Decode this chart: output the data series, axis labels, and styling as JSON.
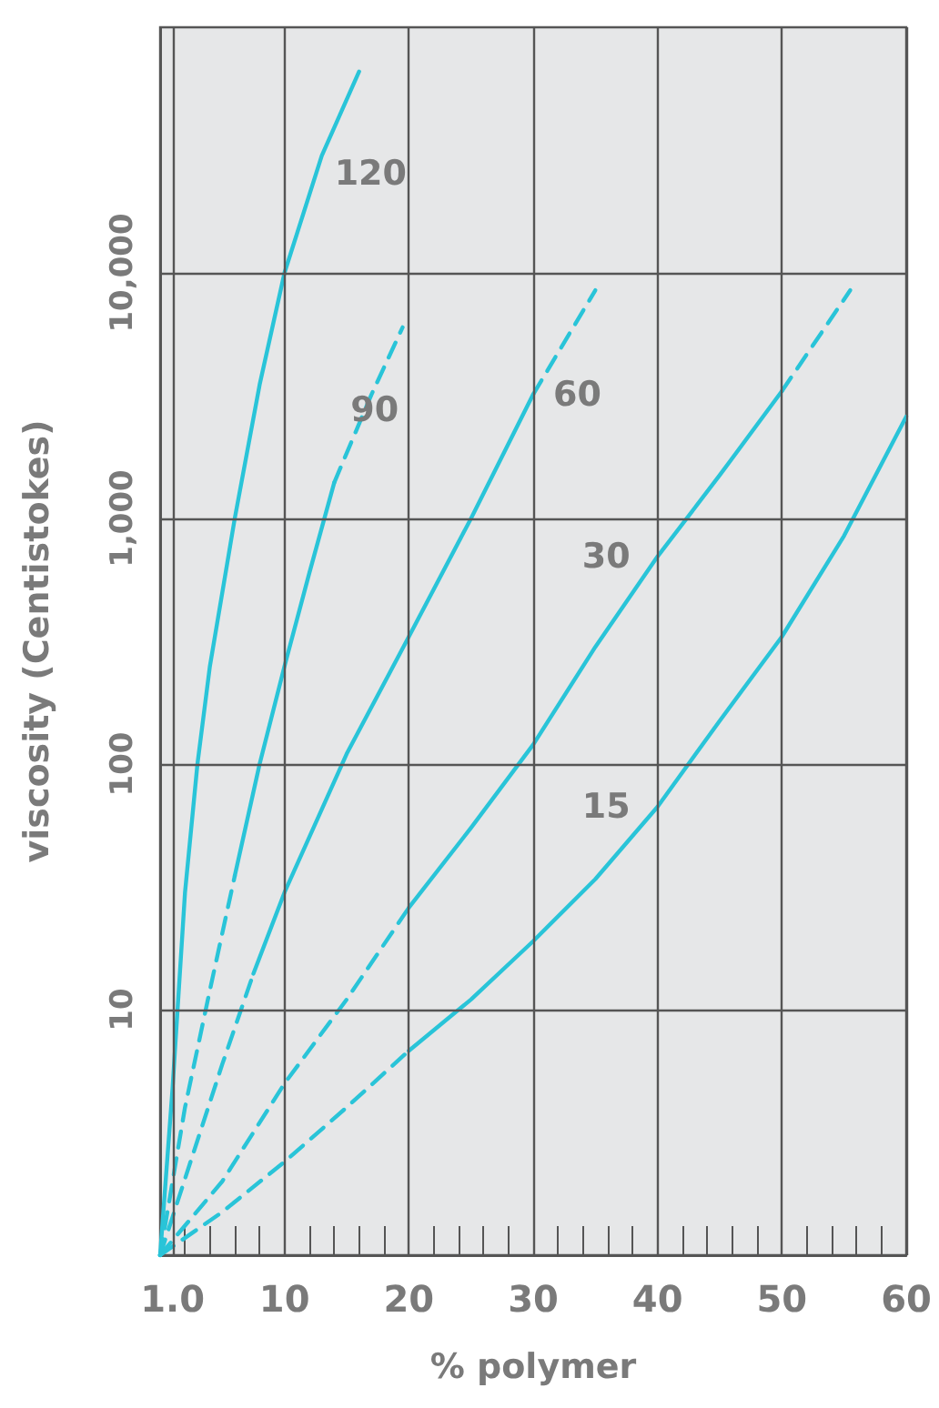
{
  "chart_data": {
    "type": "line",
    "xlabel": "% polymer",
    "ylabel": "viscosity (Centistokes)",
    "xlim": [
      0,
      60
    ],
    "xticks": [
      {
        "value": 1,
        "label": "1.0"
      },
      {
        "value": 2,
        "label": null
      },
      {
        "value": 4,
        "label": null
      },
      {
        "value": 6,
        "label": null
      },
      {
        "value": 8,
        "label": null
      },
      10,
      {
        "value": 12,
        "label": null
      },
      {
        "value": 14,
        "label": null
      },
      {
        "value": 16,
        "label": null
      },
      {
        "value": 18,
        "label": null
      },
      20,
      {
        "value": 22,
        "label": null
      },
      {
        "value": 24,
        "label": null
      },
      {
        "value": 26,
        "label": null
      },
      {
        "value": 28,
        "label": null
      },
      30,
      {
        "value": 32,
        "label": null
      },
      {
        "value": 34,
        "label": null
      },
      {
        "value": 36,
        "label": null
      },
      {
        "value": 38,
        "label": null
      },
      40,
      {
        "value": 42,
        "label": null
      },
      {
        "value": 44,
        "label": null
      },
      {
        "value": 46,
        "label": null
      },
      {
        "value": 48,
        "label": null
      },
      50,
      {
        "value": 52,
        "label": null
      },
      {
        "value": 54,
        "label": null
      },
      {
        "value": 56,
        "label": null
      },
      {
        "value": 58,
        "label": null
      },
      60
    ],
    "ylim": [
      1,
      100000
    ],
    "yticks": [
      10,
      100,
      {
        "value": 1000,
        "label": "1,000"
      },
      {
        "value": 10000,
        "label": "10,000"
      }
    ],
    "log": "y",
    "grid": true,
    "legend": false,
    "marker": "none",
    "series": [
      {
        "name": "120",
        "color": "#29c4d8",
        "line_style": "solid",
        "x": [
          0,
          1,
          2,
          3,
          4,
          6,
          8,
          10,
          13,
          16
        ],
        "values": [
          1,
          4.8,
          30,
          100,
          250,
          1000,
          3500,
          10000,
          30000,
          66000
        ]
      },
      {
        "color": "#29c4d8",
        "line_style": "dashed",
        "x": [
          0,
          2,
          4,
          6
        ],
        "values": [
          1,
          4,
          12,
          35
        ]
      },
      {
        "name": "90",
        "color": "#29c4d8",
        "line_style": "solid",
        "x": [
          6,
          8,
          10,
          12,
          14
        ],
        "values": [
          35,
          100,
          250,
          600,
          1400
        ]
      },
      {
        "color": "#29c4d8",
        "line_style": "dashed",
        "x": [
          14,
          17,
          19.5
        ],
        "values": [
          1400,
          3200,
          6000
        ]
      },
      {
        "color": "#29c4d8",
        "line_style": "dashed",
        "x": [
          0,
          5,
          7.5
        ],
        "values": [
          1,
          6,
          14
        ]
      },
      {
        "name": "60",
        "color": "#29c4d8",
        "line_style": "solid",
        "x": [
          7.5,
          10,
          15,
          20,
          25,
          30
        ],
        "values": [
          14,
          30,
          110,
          330,
          1000,
          3200
        ]
      },
      {
        "color": "#29c4d8",
        "line_style": "dashed",
        "x": [
          30,
          35
        ],
        "values": [
          3200,
          8500
        ]
      },
      {
        "color": "#29c4d8",
        "line_style": "dashed",
        "x": [
          0,
          5,
          10,
          15,
          20
        ],
        "values": [
          1,
          2,
          5,
          11,
          26
        ]
      },
      {
        "name": "30",
        "color": "#29c4d8",
        "line_style": "solid",
        "x": [
          20,
          25,
          30,
          35,
          40,
          45,
          50
        ],
        "values": [
          26,
          55,
          120,
          300,
          700,
          1500,
          3300
        ]
      },
      {
        "color": "#29c4d8",
        "line_style": "dashed",
        "x": [
          50,
          55.5
        ],
        "values": [
          3300,
          8500
        ]
      },
      {
        "color": "#29c4d8",
        "line_style": "dashed",
        "x": [
          0,
          5,
          10,
          15,
          20
        ],
        "values": [
          1,
          1.5,
          2.4,
          4,
          6.8
        ]
      },
      {
        "name": "15",
        "color": "#29c4d8",
        "line_style": "solid",
        "x": [
          20,
          25,
          30,
          35,
          40,
          45,
          50,
          55,
          60
        ],
        "values": [
          6.8,
          11,
          19,
          34,
          67,
          150,
          330,
          850,
          2600
        ]
      }
    ]
  }
}
